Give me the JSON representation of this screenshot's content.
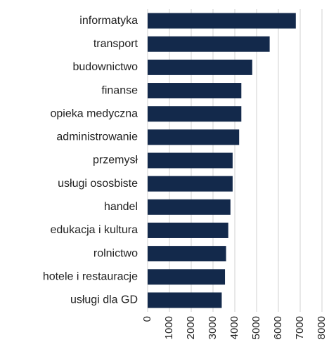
{
  "chart_data": {
    "type": "hbar",
    "categories": [
      "informatyka",
      "transport",
      "budownictwo",
      "finanse",
      "opieka medyczna",
      "administrowanie",
      "przemysł",
      "usługi ososbiste",
      "handel",
      "edukacja i kultura",
      "rolnictwo",
      "hotele i restauracje",
      "usługi dla GD"
    ],
    "values": [
      6800,
      5600,
      4800,
      4300,
      4300,
      4200,
      3900,
      3900,
      3800,
      3700,
      3600,
      3550,
      3400
    ],
    "color": "#13294b",
    "xlim": [
      0,
      8000
    ],
    "xticks": [
      0,
      1000,
      2000,
      3000,
      4000,
      5000,
      6000,
      7000,
      8000
    ],
    "grid": true
  }
}
